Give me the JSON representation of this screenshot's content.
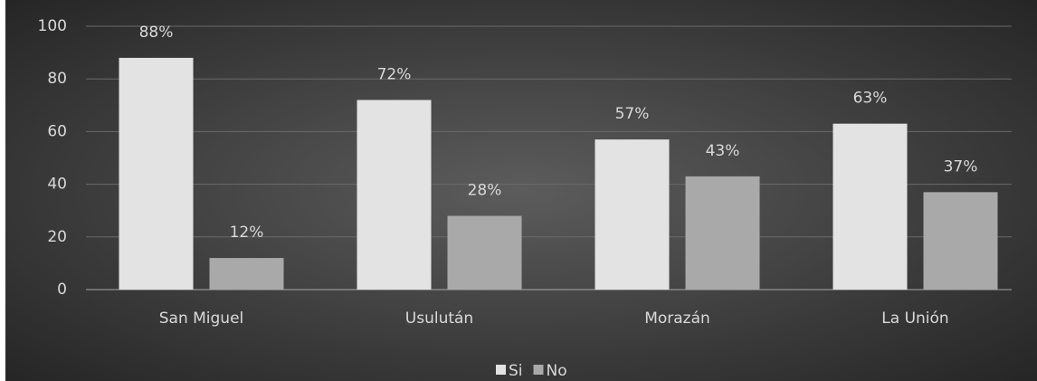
{
  "chart_data": {
    "type": "bar",
    "categories": [
      "San Miguel",
      "Usulután",
      "Morazán",
      "La Unión"
    ],
    "series": [
      {
        "name": "Si",
        "color": "#e3e3e3",
        "values": [
          88,
          72,
          57,
          63
        ],
        "value_labels": [
          "88%",
          "72%",
          "57%",
          "63%"
        ]
      },
      {
        "name": "No",
        "color": "#a9a9a9",
        "values": [
          12,
          28,
          43,
          37
        ],
        "value_labels": [
          "12%",
          "28%",
          "43%",
          "37%"
        ]
      }
    ],
    "ylim": [
      0,
      100
    ],
    "yticks": [
      0,
      20,
      40,
      60,
      80,
      100
    ],
    "grid": true,
    "legend": "bottom"
  }
}
